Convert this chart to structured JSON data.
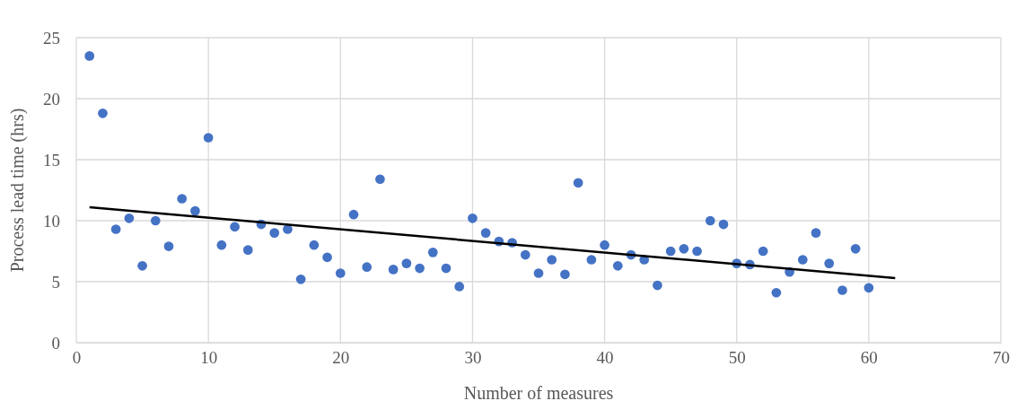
{
  "chart_data": {
    "type": "scatter",
    "xlabel": "Number of measures",
    "ylabel": "Process lead time (hrs)",
    "xlim": [
      0,
      70
    ],
    "xticks": [
      0,
      10,
      20,
      30,
      40,
      50,
      60,
      70
    ],
    "ylim": [
      0,
      25
    ],
    "yticks": [
      0,
      5,
      10,
      15,
      20,
      25
    ],
    "grid": true,
    "series": [
      {
        "marker": "circle",
        "color": "#4472c4",
        "x": [
          1,
          2,
          3,
          4,
          5,
          6,
          7,
          8,
          9,
          10,
          11,
          12,
          13,
          14,
          15,
          16,
          17,
          18,
          19,
          20,
          21,
          22,
          23,
          24,
          25,
          26,
          27,
          28,
          29,
          30,
          31,
          32,
          33,
          34,
          35,
          36,
          37,
          38,
          39,
          40,
          41,
          42,
          43,
          44,
          45,
          46,
          47,
          48,
          49,
          50,
          51,
          52,
          53,
          54,
          55,
          56,
          57,
          58,
          59,
          60
        ],
        "values": [
          23.5,
          18.8,
          9.3,
          10.2,
          6.3,
          10.0,
          7.9,
          11.8,
          10.8,
          16.8,
          8.0,
          9.5,
          7.6,
          9.7,
          9.0,
          9.3,
          5.2,
          8.0,
          7.0,
          5.7,
          10.5,
          6.2,
          13.4,
          6.0,
          6.5,
          6.1,
          7.4,
          6.1,
          4.6,
          10.2,
          9.0,
          8.3,
          8.2,
          7.2,
          5.7,
          6.8,
          5.6,
          13.1,
          6.8,
          8.0,
          6.3,
          7.2,
          6.8,
          4.7,
          7.5,
          7.7,
          7.5,
          10.0,
          9.7,
          6.5,
          6.4,
          7.5,
          4.1,
          5.8,
          6.8,
          9.0,
          6.5,
          4.3,
          7.7,
          4.5
        ]
      },
      {
        "type": "line",
        "marker": "none",
        "color": "#000000",
        "x": [
          1,
          62
        ],
        "values": [
          11.1,
          5.3
        ]
      }
    ]
  }
}
